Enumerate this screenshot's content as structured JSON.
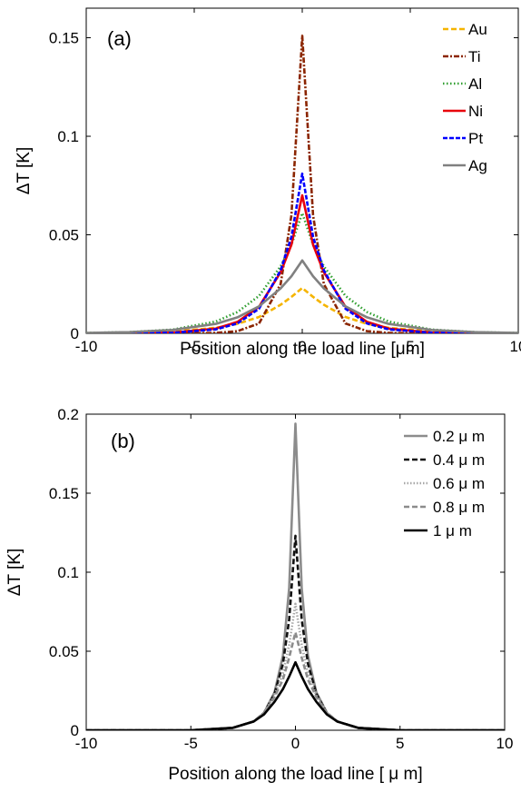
{
  "chart_data": [
    {
      "type": "line",
      "panel_label": "(a)",
      "xlabel": "Position along the load line [μm]",
      "ylabel": "ΔT [K]",
      "xlim": [
        -10,
        10
      ],
      "ylim": [
        0,
        0.165
      ],
      "xticks": [
        -10,
        -5,
        0,
        5,
        10
      ],
      "yticks": [
        0,
        0.05,
        0.1,
        0.15
      ],
      "ytick_labels": [
        "0",
        "0.05",
        "0.1",
        "0.15"
      ],
      "grid": false,
      "legend_position": "top-right",
      "series": [
        {
          "name": "Au",
          "peak": 0.023,
          "x": [
            -10,
            -8,
            -6,
            -4,
            -3,
            -2,
            -1,
            -0.5,
            0,
            0.5,
            1,
            2,
            3,
            4,
            6,
            8,
            10
          ],
          "values": [
            0.0001,
            0.0003,
            0.0009,
            0.0028,
            0.0048,
            0.0083,
            0.0145,
            0.0185,
            0.023,
            0.0185,
            0.0145,
            0.0083,
            0.0048,
            0.0028,
            0.0009,
            0.0003,
            0.0001
          ],
          "color": "#f5b400",
          "dash": "6,3"
        },
        {
          "name": "Ti",
          "peak": 0.151,
          "x": [
            -10,
            -6,
            -4,
            -3,
            -2,
            -1,
            -0.5,
            0,
            0.5,
            1,
            2,
            3,
            4,
            6,
            10
          ],
          "values": [
            0.0,
            0.0,
            0.0002,
            0.0011,
            0.005,
            0.025,
            0.06,
            0.151,
            0.06,
            0.025,
            0.005,
            0.0011,
            0.0002,
            0.0,
            0.0
          ],
          "color": "#8b2500",
          "dash": "6,2,2,2"
        },
        {
          "name": "Al",
          "peak": 0.061,
          "x": [
            -10,
            -8,
            -6,
            -4,
            -3,
            -2,
            -1,
            -0.5,
            0,
            0.5,
            1,
            2,
            3,
            4,
            6,
            8,
            10
          ],
          "values": [
            0.0002,
            0.0006,
            0.0019,
            0.006,
            0.0108,
            0.019,
            0.034,
            0.045,
            0.061,
            0.045,
            0.034,
            0.019,
            0.0108,
            0.006,
            0.0019,
            0.0006,
            0.0002
          ],
          "color": "#2e9e2e",
          "dash": "1.5,2.5"
        },
        {
          "name": "Ni",
          "peak": 0.07,
          "x": [
            -10,
            -6,
            -4,
            -3,
            -2,
            -1,
            -0.5,
            0,
            0.5,
            1,
            2,
            3,
            4,
            6,
            10
          ],
          "values": [
            0.0,
            0.0004,
            0.0024,
            0.0058,
            0.0135,
            0.031,
            0.045,
            0.07,
            0.045,
            0.031,
            0.0135,
            0.0058,
            0.0024,
            0.0004,
            0.0
          ],
          "color": "#e8000b",
          "dash": ""
        },
        {
          "name": "Pt",
          "peak": 0.081,
          "x": [
            -10,
            -6,
            -4,
            -3,
            -2,
            -1,
            -0.5,
            0,
            0.5,
            1,
            2,
            3,
            4,
            6,
            10
          ],
          "values": [
            0.0,
            0.0003,
            0.002,
            0.005,
            0.0125,
            0.032,
            0.049,
            0.081,
            0.049,
            0.032,
            0.0125,
            0.005,
            0.002,
            0.0003,
            0.0
          ],
          "color": "#0000ff",
          "dash": "5,2"
        },
        {
          "name": "Ag",
          "peak": 0.037,
          "x": [
            -10,
            -8,
            -6,
            -4,
            -3,
            -2,
            -1,
            -0.5,
            0,
            0.5,
            1,
            2,
            3,
            4,
            6,
            8,
            10
          ],
          "values": [
            0.0002,
            0.0006,
            0.0017,
            0.0048,
            0.0081,
            0.0137,
            0.0228,
            0.029,
            0.037,
            0.029,
            0.0228,
            0.0137,
            0.0081,
            0.0048,
            0.0017,
            0.0006,
            0.0002
          ],
          "color": "#808080",
          "dash": ""
        }
      ]
    },
    {
      "type": "line",
      "panel_label": "(b)",
      "xlabel": "Position along the load line [ μ m]",
      "ylabel": "ΔT [K]",
      "xlim": [
        -10,
        10
      ],
      "ylim": [
        0,
        0.2
      ],
      "xticks": [
        -10,
        -5,
        0,
        5,
        10
      ],
      "yticks": [
        0,
        0.05,
        0.1,
        0.15,
        0.2
      ],
      "ytick_labels": [
        "0",
        "0.05",
        "0.1",
        "0.15",
        "0.2"
      ],
      "grid": false,
      "legend_position": "top-right",
      "series": [
        {
          "name": "0.2 μ m",
          "peak": 0.194,
          "x": [
            -10,
            -5,
            -3,
            -2,
            -1.5,
            -1,
            -0.6,
            -0.3,
            0,
            0.3,
            0.6,
            1,
            1.5,
            2,
            3,
            5,
            10
          ],
          "values": [
            0.0,
            0.0,
            0.0015,
            0.0055,
            0.011,
            0.024,
            0.047,
            0.09,
            0.194,
            0.09,
            0.047,
            0.024,
            0.011,
            0.0055,
            0.0015,
            0.0,
            0.0
          ],
          "color": "#8c8c8c",
          "dash": ""
        },
        {
          "name": "0.4 μ m",
          "peak": 0.123,
          "x": [
            -10,
            -5,
            -3,
            -2,
            -1.5,
            -1,
            -0.6,
            -0.3,
            0,
            0.3,
            0.6,
            1,
            1.5,
            2,
            3,
            5,
            10
          ],
          "values": [
            0.0,
            0.0,
            0.0015,
            0.0055,
            0.011,
            0.023,
            0.042,
            0.07,
            0.123,
            0.07,
            0.042,
            0.023,
            0.011,
            0.0055,
            0.0015,
            0.0,
            0.0
          ],
          "color": "#111111",
          "dash": "6,3"
        },
        {
          "name": "0.6 μ m",
          "peak": 0.08,
          "x": [
            -10,
            -5,
            -3,
            -2,
            -1.5,
            -1,
            -0.6,
            -0.3,
            0,
            0.3,
            0.6,
            1,
            1.5,
            2,
            3,
            5,
            10
          ],
          "values": [
            0.0,
            0.0,
            0.0015,
            0.0055,
            0.011,
            0.022,
            0.036,
            0.054,
            0.08,
            0.054,
            0.036,
            0.022,
            0.011,
            0.0055,
            0.0015,
            0.0,
            0.0
          ],
          "color": "#a8a8a8",
          "dash": "1.5,2"
        },
        {
          "name": "0.8 μ m",
          "peak": 0.062,
          "x": [
            -10,
            -5,
            -3,
            -2,
            -1.5,
            -1,
            -0.6,
            -0.3,
            0,
            0.3,
            0.6,
            1,
            1.5,
            2,
            3,
            5,
            10
          ],
          "values": [
            0.0,
            0.0,
            0.0015,
            0.0055,
            0.011,
            0.021,
            0.032,
            0.046,
            0.062,
            0.046,
            0.032,
            0.021,
            0.011,
            0.0055,
            0.0015,
            0.0,
            0.0
          ],
          "color": "#8c8c8c",
          "dash": "6,3"
        },
        {
          "name": "1 μ m",
          "peak": 0.043,
          "x": [
            -10,
            -5,
            -3,
            -2,
            -1.5,
            -1,
            -0.6,
            -0.3,
            0,
            0.3,
            0.6,
            1,
            1.5,
            2,
            3,
            5,
            10
          ],
          "values": [
            0.0,
            0.0,
            0.0015,
            0.0055,
            0.01,
            0.018,
            0.026,
            0.034,
            0.043,
            0.034,
            0.026,
            0.018,
            0.01,
            0.0055,
            0.0015,
            0.0,
            0.0
          ],
          "color": "#000000",
          "dash": ""
        }
      ]
    }
  ]
}
